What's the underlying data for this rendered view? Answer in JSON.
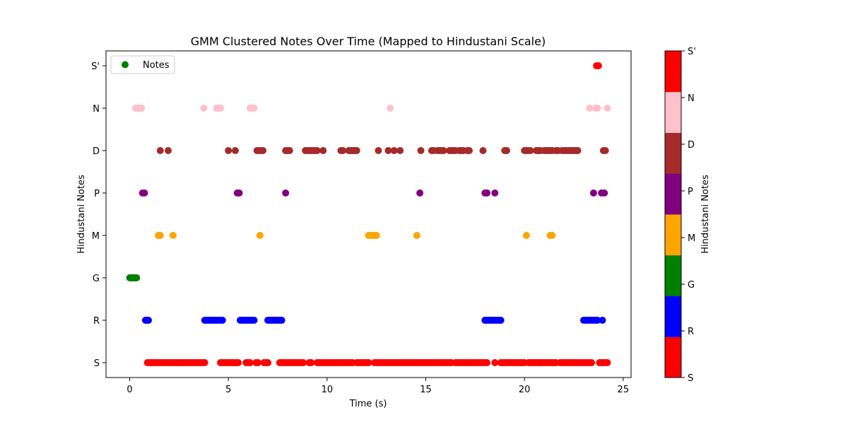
{
  "chart_data": {
    "type": "scatter",
    "title": "GMM Clustered Notes Over Time (Mapped to Hindustani Scale)",
    "xlabel": "Time (s)",
    "ylabel": "Hindustani Notes",
    "xlim": [
      -1.2,
      25.4
    ],
    "ylim": [
      -0.35,
      7.35
    ],
    "x_ticks": [
      0,
      5,
      10,
      15,
      20,
      25
    ],
    "x_tick_labels": [
      "0",
      "5",
      "10",
      "15",
      "20",
      "25"
    ],
    "y_ticks": [
      0,
      1,
      2,
      3,
      4,
      5,
      6,
      7
    ],
    "y_tick_labels": [
      "S",
      "R",
      "G",
      "M",
      "P",
      "D",
      "N",
      "S'"
    ],
    "legend": {
      "label": "Notes",
      "color": "#008000",
      "position": "upper-left"
    },
    "colorbar": {
      "label": "Hindustani Notes",
      "tick_labels": [
        "S",
        "R",
        "G",
        "M",
        "P",
        "D",
        "N",
        "S'"
      ],
      "colors": [
        "#ff0000",
        "#0000ff",
        "#008000",
        "#ffa500",
        "#800080",
        "#a52a2a",
        "#ffc0cb",
        "#ff0000"
      ]
    },
    "grid": false,
    "series": [
      {
        "note": "S",
        "y": 0,
        "color": "#ff0000",
        "x": [
          0.9,
          1.0,
          1.1,
          1.2,
          1.3,
          1.4,
          1.5,
          1.6,
          1.7,
          1.8,
          1.9,
          2.0,
          2.1,
          2.2,
          2.3,
          2.4,
          2.5,
          2.6,
          2.7,
          2.8,
          2.9,
          3.0,
          3.1,
          3.2,
          3.3,
          3.4,
          3.5,
          3.6,
          3.7,
          3.8,
          4.6,
          4.7,
          4.8,
          4.9,
          5.0,
          5.1,
          5.2,
          5.3,
          5.4,
          5.5,
          5.9,
          6.0,
          6.1,
          6.4,
          6.5,
          6.8,
          6.9,
          7.0,
          7.6,
          7.7,
          7.8,
          7.9,
          8.0,
          8.1,
          8.2,
          8.3,
          8.4,
          8.5,
          8.6,
          8.7,
          8.8,
          9.1,
          9.2,
          9.5,
          9.6,
          9.7,
          9.8,
          9.9,
          10.0,
          10.1,
          10.2,
          10.3,
          10.4,
          10.5,
          10.6,
          10.7,
          10.8,
          10.9,
          11.0,
          11.1,
          11.2,
          11.3,
          11.5,
          11.6,
          11.7,
          11.8,
          11.9,
          12.0,
          12.1,
          12.4,
          12.5,
          12.6,
          12.7,
          12.8,
          12.9,
          13.0,
          13.1,
          13.2,
          13.3,
          13.4,
          13.5,
          13.6,
          13.7,
          13.8,
          13.9,
          14.0,
          14.1,
          14.2,
          14.3,
          14.4,
          14.5,
          14.6,
          14.7,
          14.8,
          14.9,
          15.0,
          15.1,
          15.2,
          15.3,
          15.4,
          15.5,
          15.6,
          15.7,
          15.8,
          15.9,
          16.0,
          16.1,
          16.2,
          16.3,
          16.5,
          16.6,
          16.7,
          16.8,
          16.9,
          17.0,
          17.1,
          17.2,
          17.3,
          17.4,
          17.5,
          17.6,
          17.7,
          17.8,
          17.9,
          18.0,
          18.1,
          18.5,
          18.8,
          18.9,
          19.0,
          19.1,
          19.2,
          19.3,
          19.4,
          19.5,
          19.6,
          19.7,
          19.8,
          19.9,
          20.0,
          20.2,
          20.3,
          20.4,
          20.5,
          20.6,
          20.7,
          20.8,
          20.9,
          21.0,
          21.1,
          21.2,
          21.3,
          21.4,
          21.5,
          21.6,
          21.8,
          21.9,
          22.0,
          22.1,
          22.2,
          22.3,
          22.4,
          22.5,
          22.6,
          22.7,
          22.8,
          22.9,
          23.0,
          23.1,
          23.2,
          23.3,
          23.4,
          23.8,
          23.9,
          24.0,
          24.1,
          24.2
        ]
      },
      {
        "note": "R",
        "y": 1,
        "color": "#0000ff",
        "x": [
          0.8,
          0.85,
          0.9,
          0.95,
          3.8,
          3.9,
          4.0,
          4.1,
          4.2,
          4.3,
          4.4,
          4.5,
          4.6,
          4.7,
          5.6,
          5.7,
          5.8,
          5.9,
          6.0,
          6.1,
          6.2,
          6.3,
          7.0,
          7.1,
          7.2,
          7.3,
          7.4,
          7.5,
          7.6,
          7.7,
          18.0,
          18.1,
          18.2,
          18.3,
          18.4,
          18.5,
          18.6,
          18.7,
          18.8,
          23.0,
          23.1,
          23.2,
          23.3,
          23.4,
          23.5,
          23.6,
          23.7,
          23.95
        ]
      },
      {
        "note": "G",
        "y": 2,
        "color": "#008000",
        "x": [
          0.0,
          0.05,
          0.1,
          0.15,
          0.2,
          0.25,
          0.3,
          0.35
        ]
      },
      {
        "note": "M",
        "y": 3,
        "color": "#ffa500",
        "x": [
          1.45,
          1.55,
          2.2,
          6.6,
          12.1,
          12.2,
          12.3,
          12.4,
          12.5,
          14.55,
          20.1,
          21.3,
          21.4
        ]
      },
      {
        "note": "P",
        "y": 4,
        "color": "#800080",
        "x": [
          0.65,
          0.75,
          5.45,
          5.55,
          7.9,
          14.7,
          18.0,
          18.1,
          18.5,
          23.5,
          23.9,
          24.05
        ]
      },
      {
        "note": "D",
        "y": 5,
        "color": "#a52a2a",
        "x": [
          1.55,
          1.95,
          5.0,
          5.35,
          6.45,
          6.55,
          6.65,
          6.75,
          7.9,
          8.0,
          8.1,
          8.9,
          9.0,
          9.1,
          9.2,
          9.3,
          9.4,
          9.5,
          9.8,
          10.7,
          10.8,
          11.1,
          11.2,
          11.3,
          11.4,
          11.5,
          12.6,
          13.1,
          13.4,
          13.7,
          14.75,
          15.3,
          15.4,
          15.6,
          15.7,
          15.8,
          15.9,
          16.2,
          16.3,
          16.4,
          16.5,
          16.7,
          16.8,
          16.9,
          17.1,
          17.2,
          17.9,
          19.0,
          19.1,
          20.0,
          20.1,
          20.2,
          20.3,
          20.6,
          20.7,
          20.8,
          21.0,
          21.1,
          21.2,
          21.3,
          21.4,
          21.6,
          21.7,
          21.9,
          22.0,
          22.1,
          22.2,
          22.3,
          22.4,
          22.5,
          22.6,
          22.7,
          24.0,
          24.1
        ]
      },
      {
        "note": "N",
        "y": 6,
        "color": "#ffc0cb",
        "x": [
          0.3,
          0.4,
          0.5,
          0.6,
          3.75,
          4.4,
          4.5,
          4.6,
          6.1,
          6.2,
          6.3,
          13.2,
          23.3,
          23.6,
          23.7,
          24.2
        ]
      },
      {
        "note": "S'",
        "y": 7,
        "color": "#ff0000",
        "x": [
          23.65,
          23.75
        ]
      }
    ]
  }
}
